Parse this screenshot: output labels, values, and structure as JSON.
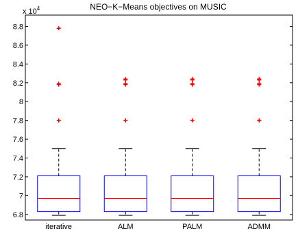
{
  "chart_data": {
    "type": "box",
    "title": "NEO−K−Means objectives on MUSIC",
    "scale_label": "x 10",
    "scale_exponent": "4",
    "categories": [
      "iterative",
      "ALM",
      "PALM",
      "ADMM"
    ],
    "ylim": [
      6.74,
      8.92
    ],
    "yticks": [
      6.8,
      7.0,
      7.2,
      7.4,
      7.6,
      7.8,
      8.0,
      8.2,
      8.4,
      8.6,
      8.8
    ],
    "ytick_labels": [
      "6.8",
      "7",
      "7.2",
      "7.4",
      "7.6",
      "7.8",
      "8",
      "8.2",
      "8.4",
      "8.6",
      "8.8"
    ],
    "grid": false,
    "boxes": [
      {
        "name": "iterative",
        "whisker_low": 6.79,
        "q1": 6.83,
        "median": 6.97,
        "q3": 7.21,
        "whisker_high": 7.5,
        "outliers": [
          7.8,
          8.18,
          8.19,
          8.78
        ]
      },
      {
        "name": "ALM",
        "whisker_low": 6.79,
        "q1": 6.83,
        "median": 6.97,
        "q3": 7.21,
        "whisker_high": 7.5,
        "outliers": [
          7.8,
          8.18,
          8.19,
          8.23,
          8.24
        ]
      },
      {
        "name": "PALM",
        "whisker_low": 6.79,
        "q1": 6.83,
        "median": 6.97,
        "q3": 7.21,
        "whisker_high": 7.5,
        "outliers": [
          7.8,
          8.18,
          8.19,
          8.23,
          8.24
        ]
      },
      {
        "name": "ADMM",
        "whisker_low": 6.79,
        "q1": 6.83,
        "median": 6.97,
        "q3": 7.21,
        "whisker_high": 7.5,
        "outliers": [
          7.8,
          8.18,
          8.19,
          8.23,
          8.24
        ]
      }
    ],
    "colors": {
      "box": "#0000ff",
      "median": "#ff0000",
      "whisker": "#000000",
      "outlier": "#ff0000",
      "axes": "#000000"
    }
  }
}
